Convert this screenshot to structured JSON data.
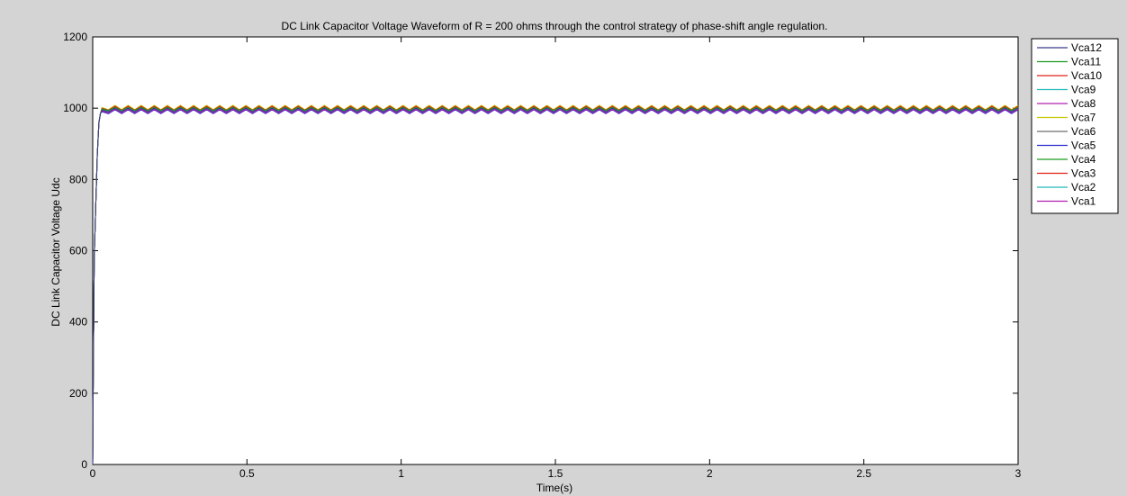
{
  "chart_data": {
    "type": "line",
    "title": "DC Link Capacitor Voltage Waveform of R = 200 ohms through the control strategy of phase-shift angle regulation.",
    "xlabel": "Time(s)",
    "ylabel": "DC Link Capacitor Voltage Udc",
    "xlim": [
      0,
      3
    ],
    "ylim": [
      0,
      1200
    ],
    "xticks": [
      0,
      0.5,
      1,
      1.5,
      2,
      2.5,
      3
    ],
    "xtick_labels": [
      "0",
      "0.5",
      "1",
      "1.5",
      "2",
      "2.5",
      "3"
    ],
    "yticks": [
      0,
      200,
      400,
      600,
      800,
      1000,
      1200
    ],
    "ytick_labels": [
      "0",
      "200",
      "400",
      "600",
      "800",
      "1000",
      "1200"
    ],
    "grid": false,
    "legend_position": "outside-top-right",
    "x": [
      0,
      0.002,
      0.005,
      0.01,
      0.015,
      0.02,
      0.025,
      0.03,
      0.05,
      0.1,
      0.5,
      1,
      1.5,
      2,
      2.5,
      3
    ],
    "series": [
      {
        "name": "Vca12",
        "color": "#3b3b8f",
        "values": [
          0,
          280,
          580,
          730,
          870,
          960,
          985,
          995,
          995,
          995,
          995,
          995,
          995,
          995,
          995,
          995
        ]
      },
      {
        "name": "Vca11",
        "color": "#1f9a1f",
        "values": [
          0,
          280,
          580,
          730,
          870,
          960,
          985,
          998,
          998,
          998,
          998,
          998,
          998,
          998,
          998,
          998
        ]
      },
      {
        "name": "Vca10",
        "color": "#e0201a",
        "values": [
          0,
          280,
          580,
          730,
          870,
          960,
          985,
          1000,
          1000,
          1000,
          1000,
          1000,
          1000,
          1000,
          1000,
          1000
        ]
      },
      {
        "name": "Vca9",
        "color": "#20b8b8",
        "values": [
          0,
          280,
          580,
          730,
          870,
          960,
          985,
          996,
          996,
          996,
          996,
          996,
          996,
          996,
          996,
          996
        ]
      },
      {
        "name": "Vca8",
        "color": "#b020b0",
        "values": [
          0,
          280,
          580,
          730,
          870,
          960,
          985,
          992,
          992,
          992,
          992,
          992,
          992,
          992,
          992,
          992
        ]
      },
      {
        "name": "Vca7",
        "color": "#c8c800",
        "values": [
          0,
          280,
          580,
          730,
          870,
          960,
          985,
          1002,
          1002,
          1002,
          1002,
          1002,
          1002,
          1002,
          1002,
          1002
        ]
      },
      {
        "name": "Vca6",
        "color": "#6e6e6e",
        "values": [
          0,
          280,
          580,
          730,
          870,
          960,
          985,
          994,
          994,
          994,
          994,
          994,
          994,
          994,
          994,
          994
        ]
      },
      {
        "name": "Vca5",
        "color": "#2a2ad0",
        "values": [
          0,
          280,
          580,
          730,
          870,
          960,
          985,
          990,
          990,
          990,
          990,
          990,
          990,
          990,
          990,
          990
        ]
      },
      {
        "name": "Vca4",
        "color": "#1f9a1f",
        "values": [
          0,
          280,
          580,
          730,
          870,
          960,
          985,
          997,
          997,
          997,
          997,
          997,
          997,
          997,
          997,
          997
        ]
      },
      {
        "name": "Vca3",
        "color": "#e0201a",
        "values": [
          0,
          280,
          580,
          730,
          870,
          960,
          985,
          999,
          999,
          999,
          999,
          999,
          999,
          999,
          999,
          999
        ]
      },
      {
        "name": "Vca2",
        "color": "#20b8b8",
        "values": [
          0,
          280,
          580,
          730,
          870,
          960,
          985,
          993,
          993,
          993,
          993,
          993,
          993,
          993,
          993,
          993
        ]
      },
      {
        "name": "Vca1",
        "color": "#b020b0",
        "values": [
          0,
          280,
          580,
          730,
          870,
          960,
          985,
          991,
          991,
          991,
          991,
          991,
          991,
          991,
          991,
          991
        ]
      }
    ]
  }
}
